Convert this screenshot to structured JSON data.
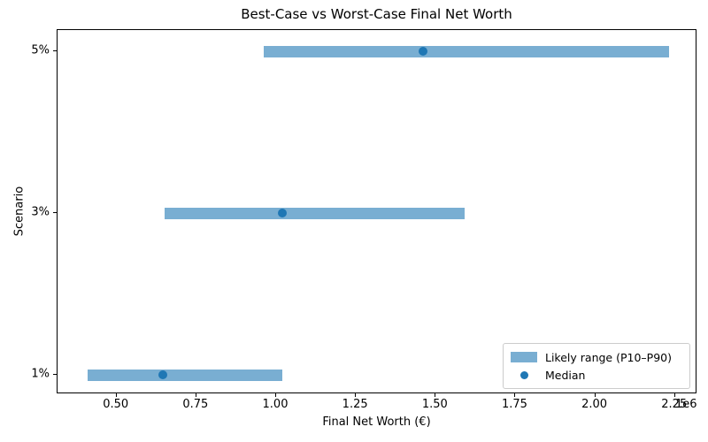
{
  "chart": {
    "title": "Best-Case vs Worst-Case Final Net Worth",
    "xlabel": "Final Net Worth (€)",
    "ylabel": "Scenario",
    "axis_offset_label": "1e6"
  },
  "legend": {
    "position": "lower right",
    "items": [
      {
        "label": "Likely range (P10–P90)",
        "marker": "bar"
      },
      {
        "label": "Median",
        "marker": "dot"
      }
    ]
  },
  "colors": {
    "range_bar": "#79aed2",
    "median_dot": "#1f77b4",
    "spine": "#000000"
  },
  "chart_data": {
    "type": "bar",
    "subtype": "horizontal-range-bars-with-median-markers",
    "title": "Best-Case vs Worst-Case Final Net Worth",
    "xlabel": "Final Net Worth (€)",
    "ylabel": "Scenario",
    "x_unit_multiplier": 1000000,
    "categories_bottom_to_top": [
      "1%",
      "3%",
      "5%"
    ],
    "series": [
      {
        "name": "P10 (range start)",
        "values": [
          410000,
          650000,
          960000
        ]
      },
      {
        "name": "Median",
        "values": [
          645000,
          1020000,
          1460000
        ]
      },
      {
        "name": "P90 (range end)",
        "values": [
          1020000,
          1590000,
          2230000
        ]
      }
    ],
    "xlim": [
      315000,
      2320000
    ],
    "x_ticks": [
      500000,
      750000,
      1000000,
      1250000,
      1500000,
      1750000,
      2000000,
      2250000
    ],
    "x_tick_labels": [
      "0.50",
      "0.75",
      "1.00",
      "1.25",
      "1.50",
      "1.75",
      "2.00",
      "2.25"
    ],
    "grid": false,
    "legend_position": "lower right"
  }
}
